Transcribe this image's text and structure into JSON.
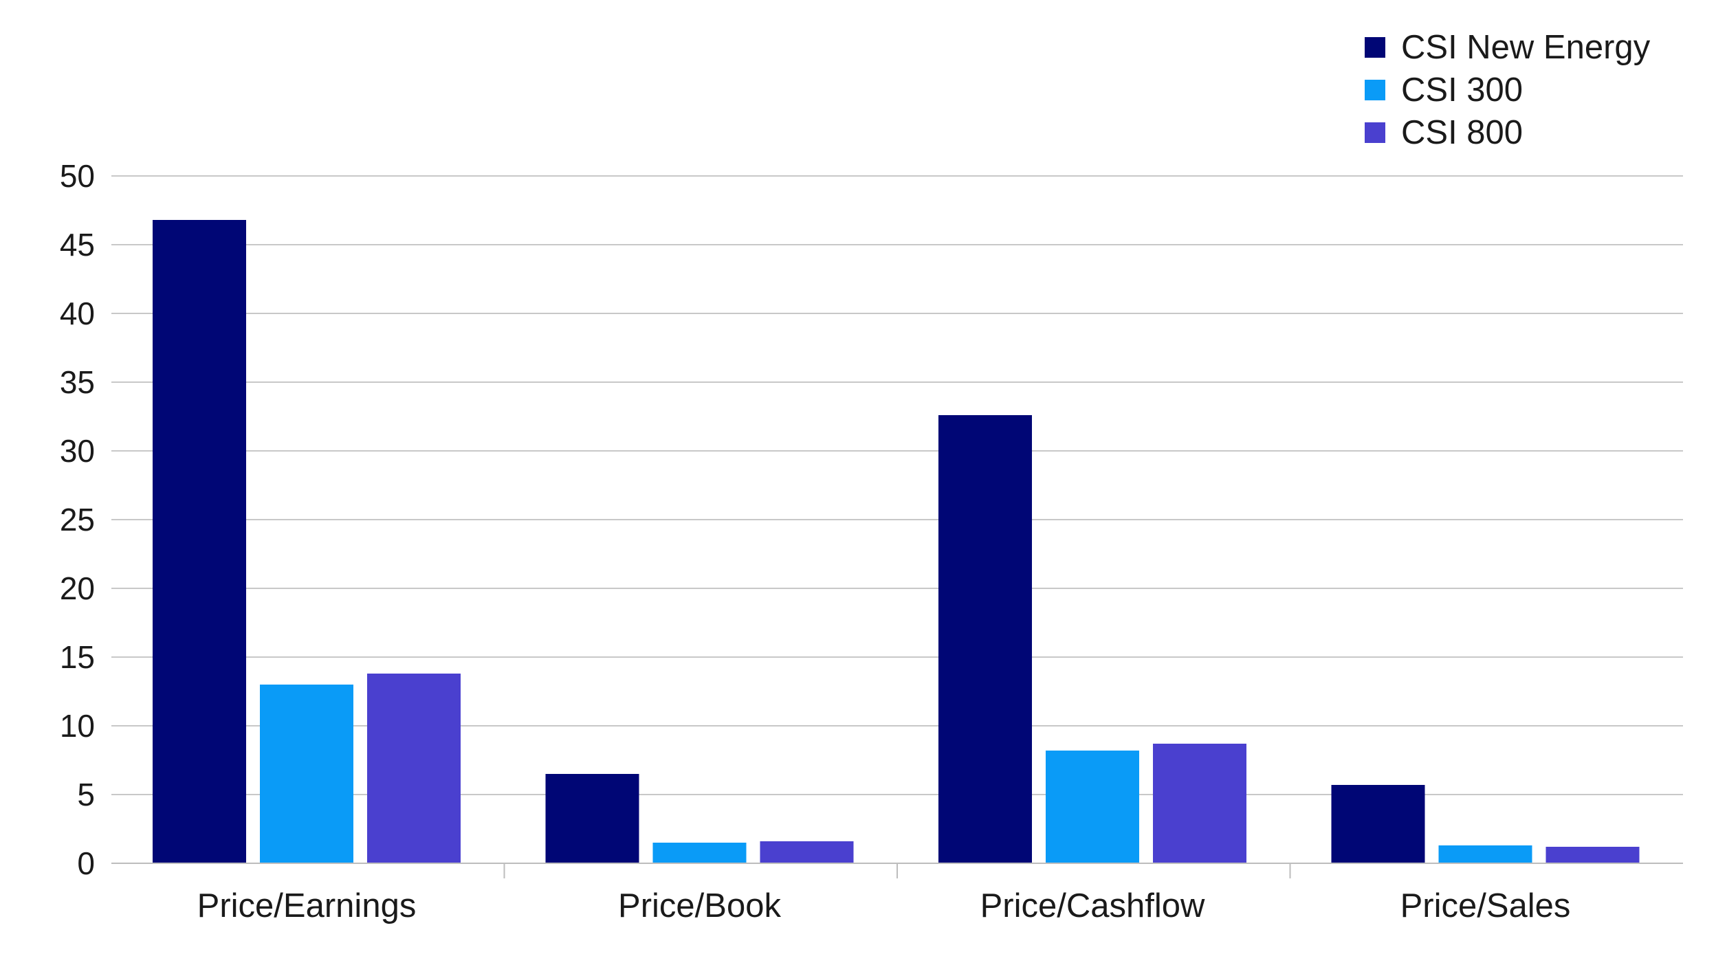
{
  "chart_data": {
    "type": "bar",
    "categories": [
      "Price/Earnings",
      "Price/Book",
      "Price/Cashflow",
      "Price/Sales"
    ],
    "series": [
      {
        "name": "CSI New Energy",
        "color": "#000675",
        "values": [
          46.8,
          6.5,
          32.6,
          5.7
        ]
      },
      {
        "name": "CSI 300",
        "color": "#0a9bf7",
        "values": [
          13.0,
          1.5,
          8.2,
          1.3
        ]
      },
      {
        "name": "CSI 800",
        "color": "#4a40cf",
        "values": [
          13.8,
          1.6,
          8.7,
          1.2
        ]
      }
    ],
    "ylim": [
      0,
      50
    ],
    "yticks": [
      "0",
      "5",
      "10",
      "15",
      "20",
      "25",
      "30",
      "35",
      "40",
      "45",
      "50"
    ],
    "title": "",
    "xlabel": "",
    "ylabel": "",
    "grid": true,
    "legend_position": "top-right"
  },
  "legend": {
    "items": [
      {
        "label": "CSI New Energy",
        "color": "#000675"
      },
      {
        "label": "CSI 300",
        "color": "#0a9bf7"
      },
      {
        "label": "CSI 800",
        "color": "#4a40cf"
      }
    ]
  }
}
